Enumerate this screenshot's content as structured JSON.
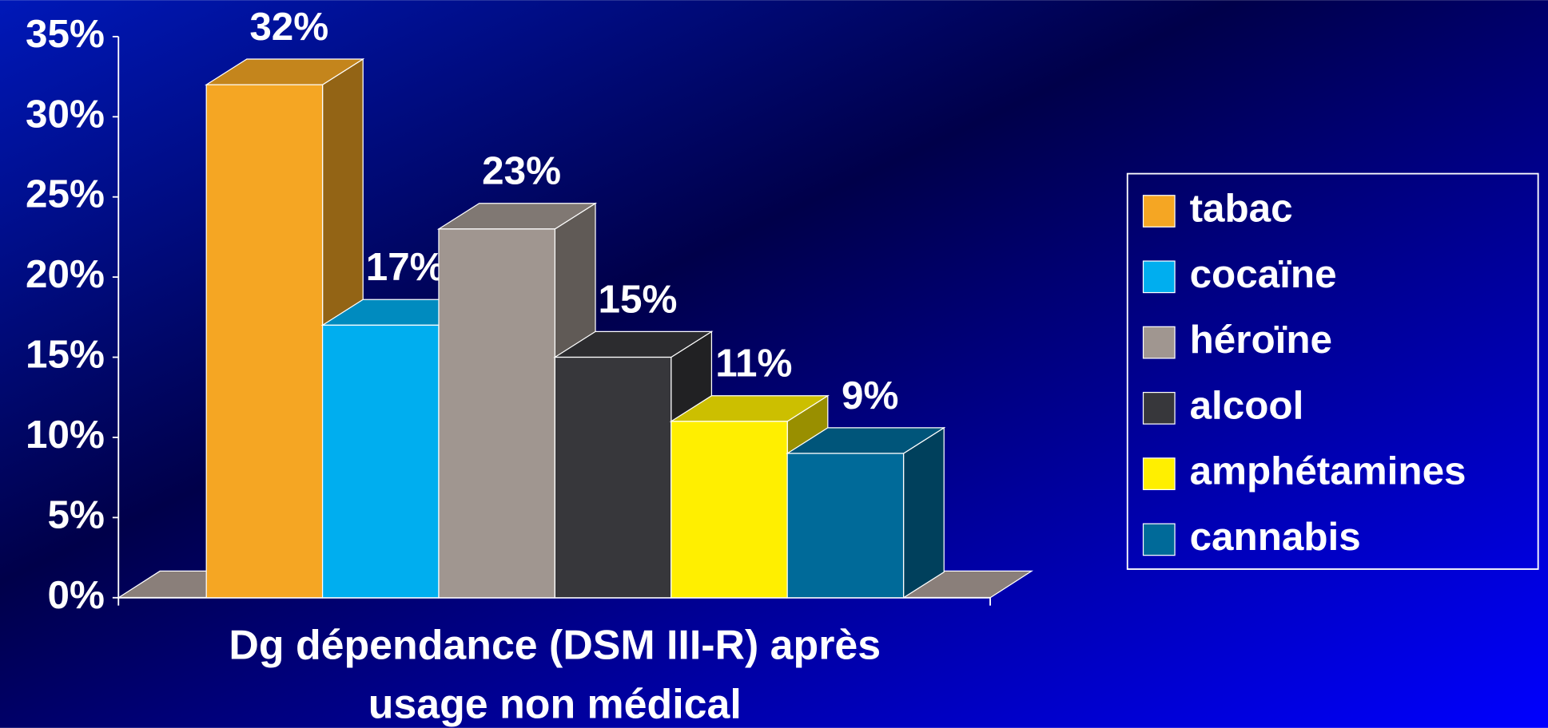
{
  "chart_data": {
    "type": "bar3d",
    "xlabel": [
      "Dg dépendance (DSM III-R) après",
      "usage non médical"
    ],
    "series": [
      {
        "name": "tabac",
        "color": "#f5a623",
        "values": [
          32
        ],
        "value_labels": [
          "32%"
        ]
      },
      {
        "name": "cocaïne",
        "color": "#00aeef",
        "values": [
          17
        ],
        "value_labels": [
          "17%"
        ]
      },
      {
        "name": "héroïne",
        "color": "#a09690",
        "values": [
          23
        ],
        "value_labels": [
          "23%"
        ]
      },
      {
        "name": "alcool",
        "color": "#37373b",
        "values": [
          15
        ],
        "value_labels": [
          "15%"
        ]
      },
      {
        "name": "amphétamines",
        "color": "#ffef00",
        "values": [
          11
        ],
        "value_labels": [
          "11%"
        ]
      },
      {
        "name": "cannabis",
        "color": "#006a99",
        "values": [
          9
        ],
        "value_labels": [
          "9%"
        ]
      }
    ],
    "ylim": [
      0,
      35
    ],
    "yticks": [
      {
        "value": 0,
        "label": "0%"
      },
      {
        "value": 5,
        "label": "5%"
      },
      {
        "value": 10,
        "label": "10%"
      },
      {
        "value": 15,
        "label": "15%"
      },
      {
        "value": 20,
        "label": "20%"
      },
      {
        "value": 25,
        "label": "25%"
      },
      {
        "value": 30,
        "label": "30%"
      },
      {
        "value": 35,
        "label": "35%"
      }
    ],
    "legend": "right"
  }
}
